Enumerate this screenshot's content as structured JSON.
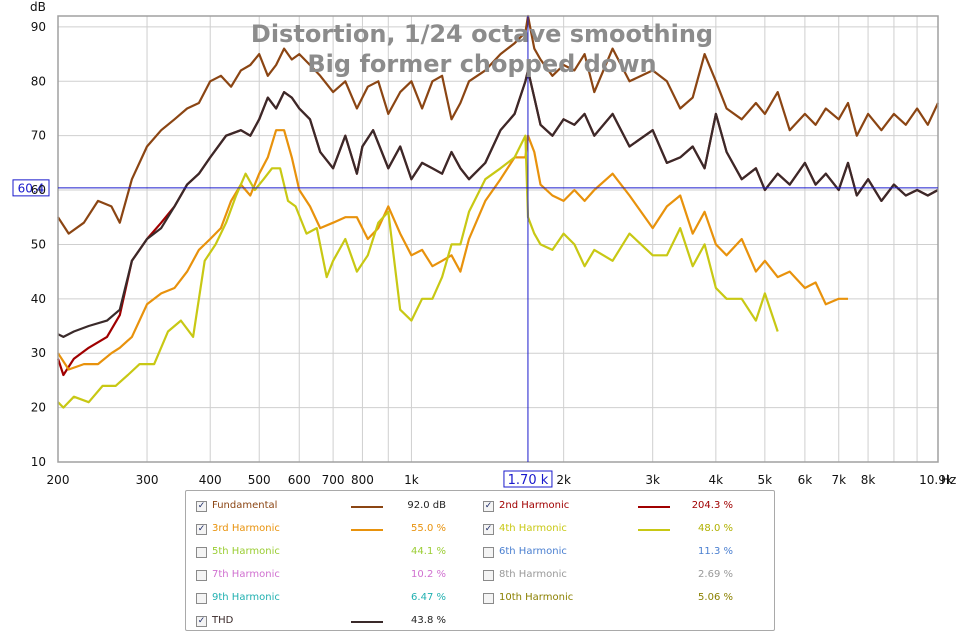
{
  "chart_data": {
    "type": "line",
    "title": "Distortion, 1/24 octave smoothing",
    "subtitle": "Big former chopped down",
    "ylabel": "dB",
    "xlabel": "Hz",
    "xscale": "log",
    "xlim": [
      200,
      11000
    ],
    "ylim": [
      10,
      92
    ],
    "grid": true,
    "y_ticks": [
      "90",
      "80",
      "70",
      "60",
      "50",
      "40",
      "30",
      "20",
      "10"
    ],
    "x_ticks": [
      {
        "v": 200,
        "label": "200"
      },
      {
        "v": 300,
        "label": "300"
      },
      {
        "v": 400,
        "label": "400"
      },
      {
        "v": 500,
        "label": "500"
      },
      {
        "v": 600,
        "label": "600"
      },
      {
        "v": 700,
        "label": "700"
      },
      {
        "v": 800,
        "label": "800"
      },
      {
        "v": 1000,
        "label": "1k"
      },
      {
        "v": 2000,
        "label": "2k"
      },
      {
        "v": 3000,
        "label": "3k"
      },
      {
        "v": 4000,
        "label": "4k"
      },
      {
        "v": 5000,
        "label": "5k"
      },
      {
        "v": 6000,
        "label": "6k"
      },
      {
        "v": 7000,
        "label": "7k"
      },
      {
        "v": 8000,
        "label": "8k"
      },
      {
        "v": 10900,
        "label": "10.9k"
      }
    ],
    "x_grid": [
      200,
      300,
      400,
      500,
      600,
      700,
      800,
      900,
      1000,
      2000,
      3000,
      4000,
      5000,
      6000,
      7000,
      8000,
      9000,
      10000,
      11000
    ],
    "cursor": {
      "x": 1700,
      "y": 60.4,
      "x_label": "1.70 k",
      "y_label": "60.4"
    },
    "series": [
      {
        "name": "Fundamental",
        "color": "#8b4513",
        "x": [
          200,
          210,
          225,
          240,
          255,
          265,
          280,
          300,
          320,
          340,
          360,
          380,
          400,
          420,
          440,
          460,
          480,
          500,
          520,
          540,
          560,
          580,
          600,
          630,
          660,
          700,
          740,
          780,
          820,
          860,
          900,
          950,
          1000,
          1050,
          1100,
          1150,
          1200,
          1250,
          1300,
          1400,
          1500,
          1600,
          1680,
          1700,
          1750,
          1800,
          1900,
          2000,
          2100,
          2200,
          2300,
          2500,
          2700,
          3000,
          3200,
          3400,
          3600,
          3800,
          4000,
          4200,
          4500,
          4800,
          5000,
          5300,
          5600,
          6000,
          6300,
          6600,
          7000,
          7300,
          7600,
          8000,
          8500,
          9000,
          9500,
          10000,
          10500,
          11000
        ],
        "y": [
          55,
          52,
          54,
          58,
          57,
          54,
          62,
          68,
          71,
          73,
          75,
          76,
          80,
          81,
          79,
          82,
          83,
          85,
          81,
          83,
          86,
          84,
          85,
          83,
          81,
          78,
          80,
          75,
          79,
          80,
          74,
          78,
          80,
          75,
          80,
          81,
          73,
          76,
          80,
          82,
          85,
          87,
          89,
          92,
          86,
          84,
          81,
          83,
          82,
          85,
          78,
          86,
          80,
          82,
          80,
          75,
          77,
          85,
          80,
          75,
          73,
          76,
          74,
          78,
          71,
          74,
          72,
          75,
          73,
          76,
          70,
          74,
          71,
          74,
          72,
          75,
          72,
          76
        ]
      },
      {
        "name": "2nd Harmonic",
        "color": "#a00000",
        "x": [
          200,
          205,
          215,
          230,
          250,
          265,
          280,
          300,
          320,
          340,
          360,
          380,
          400,
          430,
          460,
          480,
          500,
          520,
          540,
          560,
          580,
          600,
          630,
          660,
          700,
          740,
          780,
          800,
          840,
          900,
          950,
          1000,
          1050,
          1100,
          1150,
          1200,
          1250,
          1300,
          1400,
          1500,
          1600,
          1680,
          1700,
          1750,
          1800,
          1900,
          2000,
          2100,
          2200,
          2300,
          2500,
          2700,
          3000,
          3200,
          3400,
          3600,
          3800,
          4000,
          4200,
          4500,
          4800,
          5000,
          5300,
          5600,
          6000,
          6300,
          6600,
          7000,
          7300,
          7600,
          8000,
          8500,
          9000,
          9500,
          10000,
          10500,
          11000
        ],
        "y": [
          29,
          26,
          29,
          31,
          33,
          37,
          47,
          51,
          54,
          57,
          61,
          63,
          66,
          70,
          71,
          70,
          73,
          77,
          75,
          78,
          77,
          75,
          73,
          67,
          64,
          70,
          63,
          68,
          71,
          64,
          68,
          62,
          65,
          64,
          63,
          67,
          64,
          62,
          65,
          71,
          74,
          80,
          82,
          77,
          72,
          70,
          73,
          72,
          74,
          70,
          74,
          68,
          71,
          65,
          66,
          68,
          64,
          74,
          67,
          62,
          64,
          60,
          63,
          61,
          65,
          61,
          63,
          60,
          65,
          59,
          62,
          58,
          61,
          59,
          60,
          59,
          60
        ]
      },
      {
        "name": "3rd Harmonic",
        "color": "#e8920c",
        "x": [
          200,
          210,
          225,
          240,
          255,
          265,
          280,
          300,
          320,
          340,
          360,
          380,
          400,
          420,
          440,
          460,
          480,
          500,
          520,
          540,
          560,
          580,
          600,
          630,
          660,
          700,
          740,
          780,
          820,
          860,
          900,
          950,
          1000,
          1050,
          1100,
          1150,
          1200,
          1250,
          1300,
          1400,
          1500,
          1600,
          1680,
          1700,
          1750,
          1800,
          1900,
          2000,
          2100,
          2200,
          2300,
          2500,
          2700,
          3000,
          3200,
          3400,
          3600,
          3800,
          4000,
          4200,
          4500,
          4800,
          5000,
          5300,
          5600,
          6000,
          6300,
          6600,
          7000,
          7300
        ],
        "y": [
          30,
          27,
          28,
          28,
          30,
          31,
          33,
          39,
          41,
          42,
          45,
          49,
          51,
          53,
          58,
          61,
          59,
          63,
          66,
          71,
          71,
          66,
          60,
          57,
          53,
          54,
          55,
          55,
          51,
          53,
          57,
          52,
          48,
          49,
          46,
          47,
          48,
          45,
          51,
          58,
          62,
          66,
          66,
          70,
          67,
          61,
          59,
          58,
          60,
          58,
          60,
          63,
          59,
          53,
          57,
          59,
          52,
          56,
          50,
          48,
          51,
          45,
          47,
          44,
          45,
          42,
          43,
          39,
          40,
          40
        ]
      },
      {
        "name": "4th Harmonic",
        "color": "#c8c814",
        "x": [
          200,
          205,
          215,
          230,
          245,
          260,
          275,
          290,
          310,
          330,
          350,
          370,
          390,
          410,
          430,
          450,
          470,
          490,
          510,
          530,
          550,
          570,
          590,
          620,
          650,
          680,
          700,
          740,
          780,
          820,
          860,
          900,
          950,
          1000,
          1050,
          1100,
          1150,
          1200,
          1250,
          1300,
          1400,
          1500,
          1600,
          1680,
          1700,
          1750,
          1800,
          1900,
          2000,
          2100,
          2200,
          2300,
          2500,
          2700,
          3000,
          3200,
          3400,
          3600,
          3800,
          4000,
          4200,
          4500,
          4800,
          5000,
          5300
        ],
        "y": [
          21,
          20,
          22,
          21,
          24,
          24,
          26,
          28,
          28,
          34,
          36,
          33,
          47,
          50,
          54,
          59,
          63,
          60,
          62,
          64,
          64,
          58,
          57,
          52,
          53,
          44,
          47,
          51,
          45,
          48,
          54,
          56,
          38,
          36,
          40,
          40,
          44,
          50,
          50,
          56,
          62,
          64,
          66,
          70,
          55,
          52,
          50,
          49,
          52,
          50,
          46,
          49,
          47,
          52,
          48,
          48,
          53,
          46,
          50,
          42,
          40,
          40,
          36,
          41,
          34
        ]
      },
      {
        "name": "THD",
        "color": "#3a2a2a",
        "x": [
          200,
          205,
          215,
          230,
          250,
          265,
          280,
          300,
          320,
          340,
          360,
          380,
          400,
          430,
          460,
          480,
          500,
          520,
          540,
          560,
          580,
          600,
          630,
          660,
          700,
          740,
          780,
          800,
          840,
          900,
          950,
          1000,
          1050,
          1100,
          1150,
          1200,
          1250,
          1300,
          1400,
          1500,
          1600,
          1680,
          1700,
          1750,
          1800,
          1900,
          2000,
          2100,
          2200,
          2300,
          2500,
          2700,
          3000,
          3200,
          3400,
          3600,
          3800,
          4000,
          4200,
          4500,
          4800,
          5000,
          5300,
          5600,
          6000,
          6300,
          6600,
          7000,
          7300,
          7600,
          8000,
          8500,
          9000,
          9500,
          10000,
          10500,
          11000
        ],
        "y": [
          33.5,
          33,
          34,
          35,
          36,
          38,
          47,
          51,
          53,
          57,
          61,
          63,
          66,
          70,
          71,
          70,
          73,
          77,
          75,
          78,
          77,
          75,
          73,
          67,
          64,
          70,
          63,
          68,
          71,
          64,
          68,
          62,
          65,
          64,
          63,
          67,
          64,
          62,
          65,
          71,
          74,
          80,
          82,
          77,
          72,
          70,
          73,
          72,
          74,
          70,
          74,
          68,
          71,
          65,
          66,
          68,
          64,
          74,
          67,
          62,
          64,
          60,
          63,
          61,
          65,
          61,
          63,
          60,
          65,
          59,
          62,
          58,
          61,
          59,
          60,
          59,
          60
        ]
      }
    ]
  },
  "legend": {
    "rows": [
      [
        {
          "label": "Fundamental",
          "checked": true,
          "color": "#8b4513",
          "swatch": true,
          "value": "92.0 dB",
          "value_color": "#222222"
        },
        {
          "label": "2nd Harmonic",
          "checked": true,
          "color": "#a00000",
          "swatch": true,
          "value": "204.3 %",
          "value_color": "#a00000"
        }
      ],
      [
        {
          "label": "3rd Harmonic",
          "checked": true,
          "color": "#e8920c",
          "swatch": true,
          "value": "55.0 %",
          "value_color": "#e8920c"
        },
        {
          "label": "4th Harmonic",
          "checked": true,
          "color": "#c8c814",
          "swatch": true,
          "value": "48.0 %",
          "value_color": "#b0b000"
        }
      ],
      [
        {
          "label": "5th Harmonic",
          "checked": false,
          "color": "#9acd32",
          "swatch": false,
          "value": "44.1 %",
          "value_color": "#9acd32"
        },
        {
          "label": "6th Harmonic",
          "checked": false,
          "color": "#4a7fd0",
          "swatch": false,
          "value": "11.3 %",
          "value_color": "#4a7fd0"
        }
      ],
      [
        {
          "label": "7th Harmonic",
          "checked": false,
          "color": "#d070d0",
          "swatch": false,
          "value": "10.2 %",
          "value_color": "#d070d0"
        },
        {
          "label": "8th Harmonic",
          "checked": false,
          "color": "#999999",
          "swatch": false,
          "value": "2.69 %",
          "value_color": "#999999"
        }
      ],
      [
        {
          "label": "9th Harmonic",
          "checked": false,
          "color": "#20b0b0",
          "swatch": false,
          "value": "6.47 %",
          "value_color": "#20b0b0"
        },
        {
          "label": "10th Harmonic",
          "checked": false,
          "color": "#8b8000",
          "swatch": false,
          "value": "5.06 %",
          "value_color": "#8b8000"
        }
      ],
      [
        {
          "label": "THD",
          "checked": true,
          "color": "#3a2a2a",
          "swatch": true,
          "value": "43.8 %",
          "value_color": "#222222"
        }
      ]
    ]
  },
  "colors": {
    "grid": "#cfcfcf",
    "plot_border": "#a0a0a0",
    "cursor": "#1a1acc",
    "title": "#8c8c8c"
  }
}
